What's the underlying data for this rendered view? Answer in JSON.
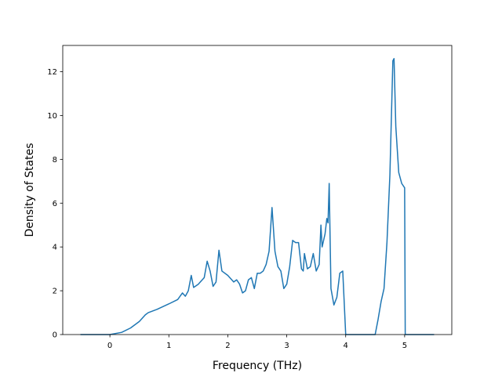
{
  "chart_data": {
    "type": "line",
    "title": "",
    "xlabel": "Frequency (THz)",
    "ylabel": "Density of States",
    "xlim": [
      -0.8,
      5.8
    ],
    "ylim": [
      0,
      13.2
    ],
    "xticks": [
      0,
      1,
      2,
      3,
      4,
      5
    ],
    "yticks": [
      0,
      2,
      4,
      6,
      8,
      10,
      12
    ],
    "grid": false,
    "legend": "none",
    "series": [
      {
        "color": "#1f77b4",
        "x": [
          -0.5,
          0.0,
          0.2,
          0.35,
          0.5,
          0.6,
          0.65,
          0.8,
          1.0,
          1.15,
          1.23,
          1.28,
          1.33,
          1.38,
          1.42,
          1.5,
          1.6,
          1.65,
          1.7,
          1.75,
          1.8,
          1.85,
          1.9,
          2.0,
          2.1,
          2.15,
          2.2,
          2.25,
          2.3,
          2.35,
          2.4,
          2.45,
          2.5,
          2.55,
          2.6,
          2.65,
          2.7,
          2.75,
          2.8,
          2.85,
          2.9,
          2.95,
          3.0,
          3.05,
          3.1,
          3.15,
          3.2,
          3.25,
          3.28,
          3.3,
          3.35,
          3.4,
          3.45,
          3.5,
          3.55,
          3.58,
          3.6,
          3.65,
          3.68,
          3.7,
          3.72,
          3.75,
          3.8,
          3.85,
          3.9,
          3.95,
          4.0,
          4.02,
          4.5,
          4.55,
          4.6,
          4.65,
          4.7,
          4.75,
          4.8,
          4.82,
          4.85,
          4.9,
          4.95,
          5.0,
          5.01,
          5.5
        ],
        "y": [
          0,
          0,
          0.1,
          0.3,
          0.6,
          0.9,
          1.0,
          1.15,
          1.4,
          1.6,
          1.9,
          1.75,
          2.0,
          2.7,
          2.15,
          2.3,
          2.6,
          3.35,
          2.9,
          2.2,
          2.4,
          3.85,
          2.9,
          2.7,
          2.4,
          2.5,
          2.3,
          1.9,
          2.0,
          2.5,
          2.6,
          2.1,
          2.8,
          2.8,
          2.9,
          3.2,
          3.8,
          5.8,
          3.8,
          3.1,
          2.9,
          2.1,
          2.3,
          3.1,
          4.3,
          4.2,
          4.2,
          3.0,
          2.9,
          3.7,
          3.0,
          3.1,
          3.7,
          2.9,
          3.2,
          5.0,
          4.0,
          4.6,
          5.3,
          5.1,
          6.9,
          2.1,
          1.35,
          1.7,
          2.8,
          2.9,
          0,
          0,
          0,
          0.7,
          1.5,
          2.1,
          4.2,
          7.3,
          12.5,
          12.6,
          9.5,
          7.4,
          6.9,
          6.7,
          0,
          0
        ]
      }
    ]
  }
}
